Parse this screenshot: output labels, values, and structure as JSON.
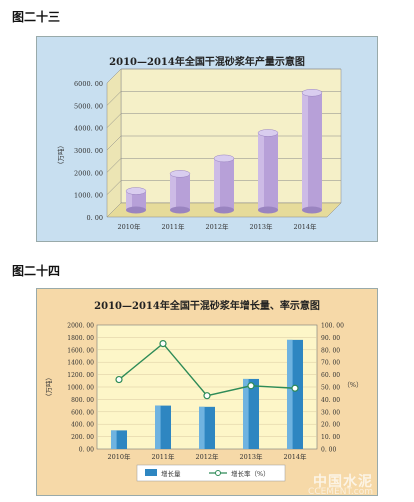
{
  "figure1_label": "图二十三",
  "figure2_label": "图二十四",
  "watermark": "中国水泥",
  "watermark_sub": "CCEMENT.com",
  "chart_data": [
    {
      "type": "bar",
      "title": "2010—2014年全国干混砂浆年产量示意图",
      "ylabel": "（万吨）",
      "categories": [
        "2010年",
        "2011年",
        "2012年",
        "2013年",
        "2014年"
      ],
      "values": [
        850,
        1620,
        2310,
        3450,
        5250
      ],
      "ylim": [
        0,
        6000
      ],
      "yticks": [
        "0. 00",
        "1000. 00",
        "2000. 00",
        "3000. 00",
        "4000. 00",
        "5000. 00",
        "6000. 00"
      ],
      "bar_color": "#b7a0d8",
      "floor_color": "#e6db9a",
      "wall_color": "#f5f0c8",
      "legend": "none"
    },
    {
      "type": "bar",
      "title": "2010—2014年全国干混砂浆年增长量、率示意图",
      "ylabel": "（万吨）",
      "y2label": "（%）",
      "categories": [
        "2010年",
        "2011年",
        "2012年",
        "2013年",
        "2014年"
      ],
      "series": [
        {
          "name": "增长量",
          "values": [
            300,
            700,
            680,
            1130,
            1760
          ],
          "color": "#2e86c1"
        },
        {
          "name": "增长率（%）",
          "values": [
            56,
            85,
            43,
            51,
            49
          ],
          "color": "#2e8b57"
        }
      ],
      "ylim": [
        0,
        2000
      ],
      "y2lim": [
        0,
        100
      ],
      "yticks": [
        "0. 00",
        "200. 00",
        "400. 00",
        "600. 00",
        "800. 00",
        "1000. 00",
        "1200. 00",
        "1400. 00",
        "1600. 00",
        "1800. 00",
        "2000. 00"
      ],
      "y2ticks": [
        "0. 00",
        "10. 00",
        "20. 00",
        "30. 00",
        "40. 00",
        "50. 00",
        "60. 00",
        "70. 00",
        "80. 00",
        "90. 00",
        "100. 00"
      ],
      "plot_color": "#fdf6c8",
      "legend": "bottom"
    }
  ]
}
